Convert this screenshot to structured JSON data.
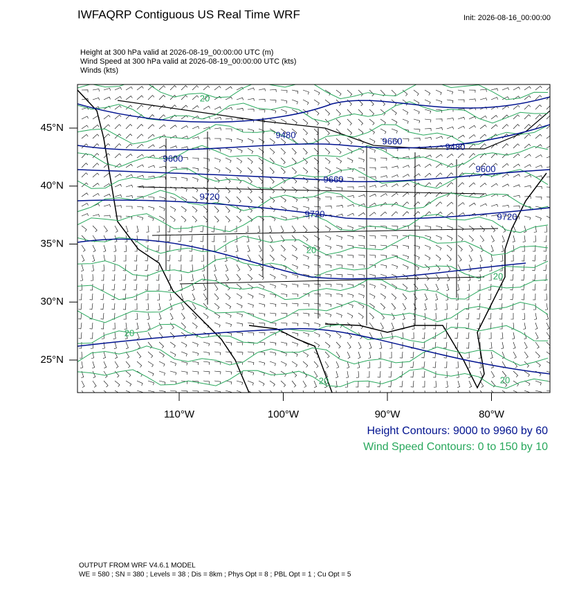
{
  "header": {
    "title": "IWFAQRP Contiguous US Real Time WRF",
    "init": "Init: 2026-08-16_00:00:00",
    "fields": [
      "Height at 300 hPa valid at 2026-08-19_00:00:00 UTC   (m)",
      "Wind Speed at 300 hPa valid at 2026-08-19_00:00:00 UTC   (kts)",
      "Winds   (kts)"
    ]
  },
  "map": {
    "lat_ticks": [
      {
        "value": 45,
        "label": "45°N"
      },
      {
        "value": 40,
        "label": "40°N"
      },
      {
        "value": 35,
        "label": "35°N"
      },
      {
        "value": 30,
        "label": "30°N"
      },
      {
        "value": 25,
        "label": "25°N"
      }
    ],
    "lon_ticks": [
      {
        "value": -110,
        "label": "110°W"
      },
      {
        "value": -100,
        "label": "100°W"
      },
      {
        "value": -90,
        "label": "90°W"
      },
      {
        "value": -80,
        "label": "80°W"
      }
    ],
    "height_labels": [
      "9480",
      "9480",
      "9600",
      "9600",
      "9660",
      "9660",
      "9720",
      "9720",
      "9720"
    ],
    "speed_labels": [
      "20",
      "20",
      "20",
      "20",
      "20",
      "20"
    ]
  },
  "legend": {
    "height": "Height Contours: 9000 to 9960 by 60",
    "speed": "Wind Speed Contours: 0 to 150 by 10"
  },
  "footer": [
    "OUTPUT FROM WRF V4.6.1 MODEL",
    "WE = 580 ; SN = 380 ; Levels = 38 ; Dis = 8km ; Phys Opt = 8 ; PBL Opt = 1 ; Cu Opt = 5"
  ]
}
